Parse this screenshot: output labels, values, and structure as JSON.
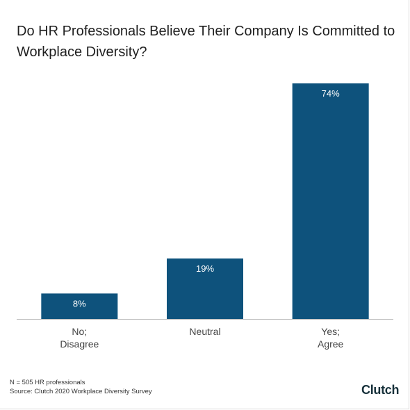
{
  "title": "Do HR Professionals Believe Their Company Is Committed to Workplace Diversity?",
  "footnote": {
    "sample": "N = 505 HR professionals",
    "source": "Source: Clutch 2020 Workplace Diversity Survey"
  },
  "logo": "Clutch",
  "colors": {
    "bar": "#0e527c",
    "label": "#ffffff",
    "axis": "#bdbdbd",
    "tick": "#444444"
  },
  "chart_data": {
    "type": "bar",
    "title": "Do HR Professionals Believe Their Company Is Committed to Workplace Diversity?",
    "categories": [
      [
        "No;",
        "Disagree"
      ],
      [
        "Neutral"
      ],
      [
        "Yes;",
        "Agree"
      ]
    ],
    "values": [
      8,
      19,
      74
    ],
    "data_labels": [
      "8%",
      "19%",
      "74%"
    ],
    "xlabel": "",
    "ylabel": "",
    "ylim": [
      0,
      74
    ],
    "grid": false,
    "legend": "none"
  }
}
